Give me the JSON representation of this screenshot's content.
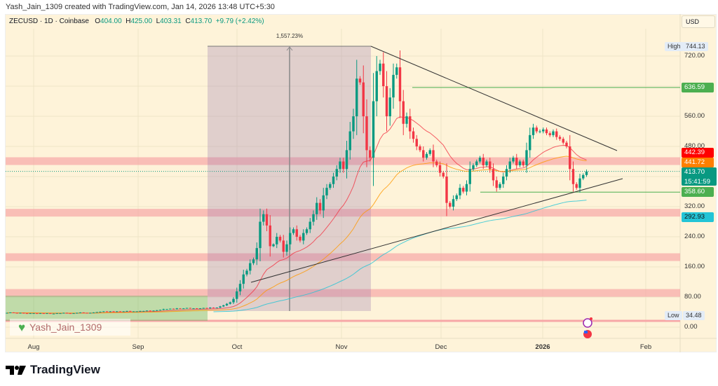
{
  "credit": "Yash_Jain_1309 created with TradingView.com, Jan 14, 2026 13:48 UTC+5:30",
  "legend": {
    "symbol": "ZECUSD · 1D · Coinbase",
    "o_label": "O",
    "o": "404.00",
    "h_label": "H",
    "h": "425.00",
    "l_label": "L",
    "l": "403.31",
    "c_label": "C",
    "c": "413.70",
    "change": "+9.79 (+2.42%)"
  },
  "currency": "USD",
  "colors": {
    "up": "#089981",
    "down": "#f23645",
    "ema_fast": "#f23645",
    "ema_mid": "#ff9800",
    "ema_slow": "#22c4d6",
    "background": "#fef3d9"
  },
  "price_axis": {
    "ticks": [
      "720.00",
      "560.00",
      "480.00",
      "320.00",
      "240.00",
      "160.00",
      "80.00",
      "0.00"
    ],
    "high_label": "High",
    "high": "744.13",
    "low_label": "Low",
    "low": "34.48"
  },
  "price_labels": [
    {
      "value": "636.59",
      "color": "#4caf50"
    },
    {
      "value": "442.39",
      "color": "#ff0000"
    },
    {
      "value": "441.72",
      "color": "#ff7f00"
    },
    {
      "value": "413.70",
      "color": "#089981",
      "sub": "15:41:59"
    },
    {
      "value": "358.60",
      "color": "#4caf50"
    },
    {
      "value": "292.93",
      "color": "#22c4d6"
    }
  ],
  "time_axis": [
    "Aug",
    "Sep",
    "Oct",
    "Nov",
    "Dec",
    "2026",
    "Feb"
  ],
  "measure_label": "1,557.23%",
  "watermark": "Yash_Jain_1309",
  "brand": "TradingView",
  "chart_data": {
    "type": "candlestick",
    "start_date": "2025-07-24",
    "interval": "1D",
    "closes": [
      38,
      39,
      38,
      37,
      38,
      37,
      36,
      37,
      37,
      36,
      37,
      36,
      37,
      36,
      36,
      37,
      37,
      38,
      37,
      36,
      37,
      38,
      39,
      38,
      37,
      38,
      39,
      40,
      41,
      42,
      41,
      42,
      41,
      42,
      41,
      42,
      43,
      42,
      42,
      42,
      43,
      43,
      44,
      43,
      44,
      45,
      46,
      48,
      48,
      49,
      48,
      50,
      49,
      50,
      51,
      50,
      50,
      49,
      50,
      51,
      50,
      52,
      51,
      52,
      55,
      58,
      62,
      66,
      75,
      95,
      115,
      140,
      150,
      170,
      180,
      210,
      280,
      300,
      270,
      215,
      220,
      240,
      230,
      200,
      220,
      250,
      260,
      240,
      230,
      250,
      260,
      280,
      300,
      330,
      310,
      350,
      370,
      380,
      400,
      420,
      440,
      420,
      470,
      520,
      560,
      660,
      650,
      560,
      470,
      450,
      600,
      680,
      700,
      640,
      560,
      610,
      670,
      690,
      600,
      540,
      560,
      520,
      500,
      480,
      470,
      450,
      460,
      470,
      440,
      430,
      410,
      400,
      330,
      320,
      340,
      350,
      370,
      360,
      380,
      420,
      430,
      440,
      450,
      430,
      440,
      420,
      390,
      370,
      380,
      400,
      420,
      440,
      450,
      430,
      440,
      430,
      470,
      510,
      530,
      520,
      520,
      525,
      515,
      510,
      520,
      505,
      500,
      490,
      480,
      420,
      380,
      370,
      395,
      404,
      413.7
    ],
    "support_resistance_zones": [
      440,
      303,
      185,
      90
    ],
    "horizontal_levels": [
      636.59,
      358.6
    ],
    "ylim": [
      0,
      760
    ]
  }
}
